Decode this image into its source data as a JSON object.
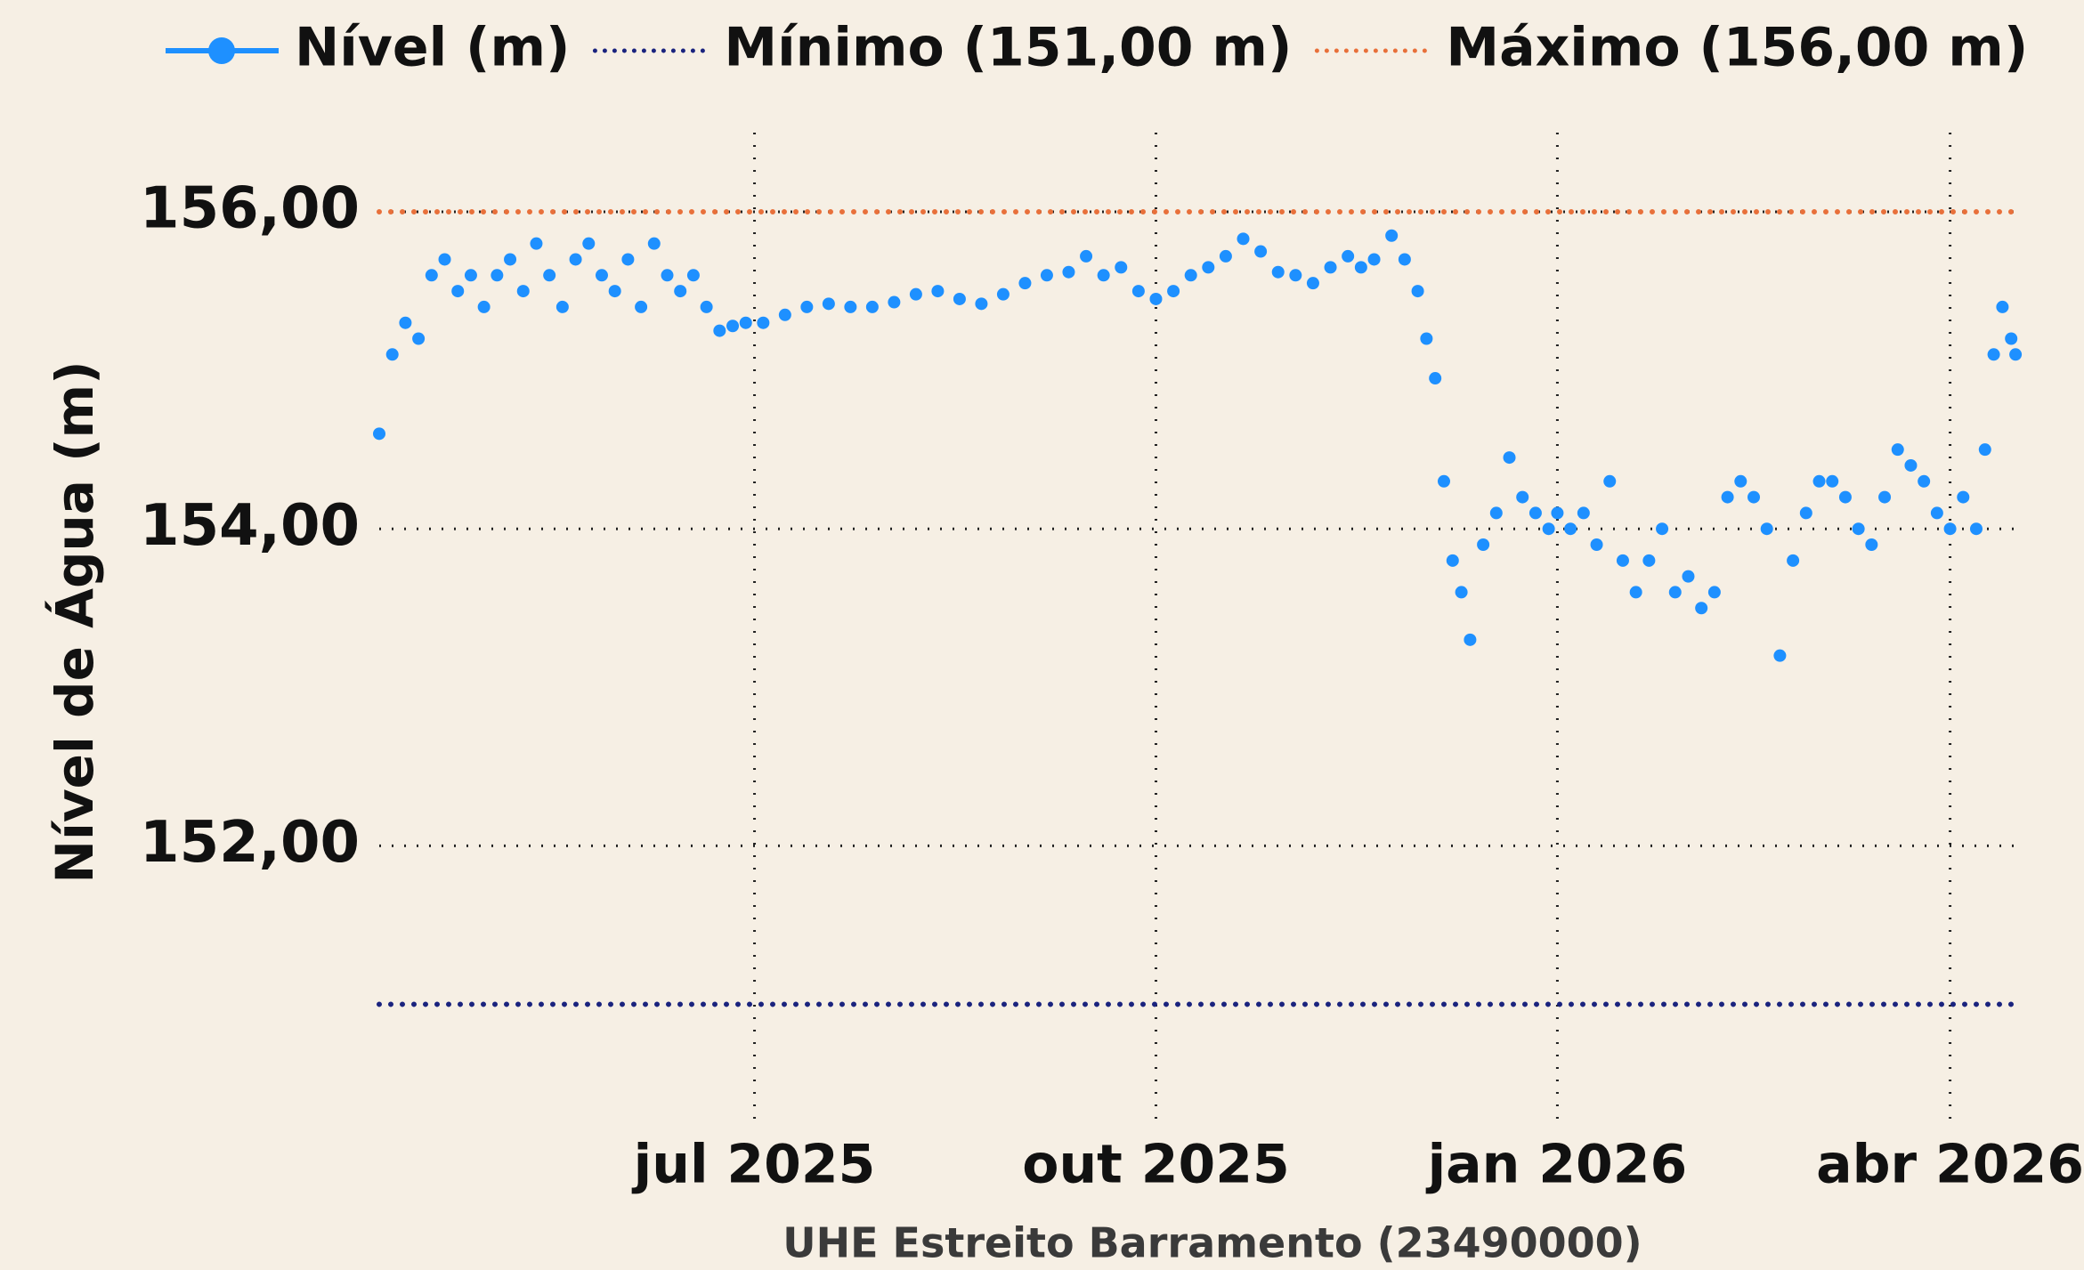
{
  "chart_data": {
    "type": "line",
    "x_label": "UHE Estreito Barramento (23490000)",
    "y_label": "Nível de Água (m)",
    "xlim": [
      "2025-04-06",
      "2026-04-17"
    ],
    "ylim": [
      150.25,
      156.5
    ],
    "xticks": [
      {
        "value": "2025-07-01",
        "label": "jul 2025"
      },
      {
        "value": "2025-10-01",
        "label": "out 2025"
      },
      {
        "value": "2026-01-01",
        "label": "jan 2026"
      },
      {
        "value": "2026-04-01",
        "label": "abr 2026"
      }
    ],
    "yticks": [
      {
        "value": 152,
        "label": "152,00"
      },
      {
        "value": 154,
        "label": "154,00"
      },
      {
        "value": 156,
        "label": "156,00"
      }
    ],
    "grid": true,
    "x": [
      "2025-04-06",
      "2025-04-09",
      "2025-04-12",
      "2025-04-15",
      "2025-04-18",
      "2025-04-21",
      "2025-04-24",
      "2025-04-27",
      "2025-04-30",
      "2025-05-03",
      "2025-05-06",
      "2025-05-09",
      "2025-05-12",
      "2025-05-15",
      "2025-05-18",
      "2025-05-21",
      "2025-05-24",
      "2025-05-27",
      "2025-05-30",
      "2025-06-02",
      "2025-06-05",
      "2025-06-08",
      "2025-06-11",
      "2025-06-14",
      "2025-06-17",
      "2025-06-20",
      "2025-06-23",
      "2025-06-26",
      "2025-06-29",
      "2025-07-03",
      "2025-07-08",
      "2025-07-13",
      "2025-07-18",
      "2025-07-23",
      "2025-07-28",
      "2025-08-02",
      "2025-08-07",
      "2025-08-12",
      "2025-08-17",
      "2025-08-22",
      "2025-08-27",
      "2025-09-01",
      "2025-09-06",
      "2025-09-11",
      "2025-09-15",
      "2025-09-19",
      "2025-09-23",
      "2025-09-27",
      "2025-10-01",
      "2025-10-05",
      "2025-10-09",
      "2025-10-13",
      "2025-10-17",
      "2025-10-21",
      "2025-10-25",
      "2025-10-29",
      "2025-11-02",
      "2025-11-06",
      "2025-11-10",
      "2025-11-14",
      "2025-11-17",
      "2025-11-20",
      "2025-11-24",
      "2025-11-27",
      "2025-11-30",
      "2025-12-02",
      "2025-12-04",
      "2025-12-06",
      "2025-12-08",
      "2025-12-10",
      "2025-12-12",
      "2025-12-15",
      "2025-12-18",
      "2025-12-21",
      "2025-12-24",
      "2025-12-27",
      "2025-12-30",
      "2026-01-01",
      "2026-01-04",
      "2026-01-07",
      "2026-01-10",
      "2026-01-13",
      "2026-01-16",
      "2026-01-19",
      "2026-01-22",
      "2026-01-25",
      "2026-01-28",
      "2026-01-31",
      "2026-02-03",
      "2026-02-06",
      "2026-02-09",
      "2026-02-12",
      "2026-02-15",
      "2026-02-18",
      "2026-02-21",
      "2026-02-24",
      "2026-02-27",
      "2026-03-02",
      "2026-03-05",
      "2026-03-08",
      "2026-03-11",
      "2026-03-14",
      "2026-03-17",
      "2026-03-20",
      "2026-03-23",
      "2026-03-26",
      "2026-03-29",
      "2026-04-01",
      "2026-04-04",
      "2026-04-07",
      "2026-04-09",
      "2026-04-11",
      "2026-04-13",
      "2026-04-15",
      "2026-04-16"
    ],
    "series": [
      {
        "name": "Nível (m)",
        "color": "#1e90ff",
        "values": [
          154.6,
          155.1,
          155.3,
          155.2,
          155.6,
          155.7,
          155.5,
          155.6,
          155.4,
          155.6,
          155.7,
          155.5,
          155.8,
          155.6,
          155.4,
          155.7,
          155.8,
          155.6,
          155.5,
          155.7,
          155.4,
          155.8,
          155.6,
          155.5,
          155.6,
          155.4,
          155.25,
          155.28,
          155.3,
          155.3,
          155.35,
          155.4,
          155.42,
          155.4,
          155.4,
          155.43,
          155.48,
          155.5,
          155.45,
          155.42,
          155.48,
          155.55,
          155.6,
          155.62,
          155.72,
          155.6,
          155.65,
          155.5,
          155.45,
          155.5,
          155.6,
          155.65,
          155.72,
          155.83,
          155.75,
          155.62,
          155.6,
          155.55,
          155.65,
          155.72,
          155.65,
          155.7,
          155.85,
          155.7,
          155.5,
          155.2,
          154.95,
          154.3,
          153.8,
          153.6,
          153.3,
          153.9,
          154.1,
          154.45,
          154.2,
          154.1,
          154.0,
          154.1,
          154.0,
          154.1,
          153.9,
          154.3,
          153.8,
          153.6,
          153.8,
          154.0,
          153.6,
          153.7,
          153.5,
          153.6,
          154.2,
          154.3,
          154.2,
          154.0,
          153.2,
          153.8,
          154.1,
          154.3,
          154.3,
          154.2,
          154.0,
          153.9,
          154.2,
          154.5,
          154.4,
          154.3,
          154.1,
          154.0,
          154.2,
          154.0,
          154.5,
          155.1,
          155.4,
          155.2,
          155.1
        ]
      }
    ],
    "reference_lines": [
      {
        "name": "Mínimo (151,00 m)",
        "value": 151,
        "color": "#1a237e"
      },
      {
        "name": "Máximo (156,00 m)",
        "value": 156,
        "color": "#e8703a"
      }
    ]
  }
}
